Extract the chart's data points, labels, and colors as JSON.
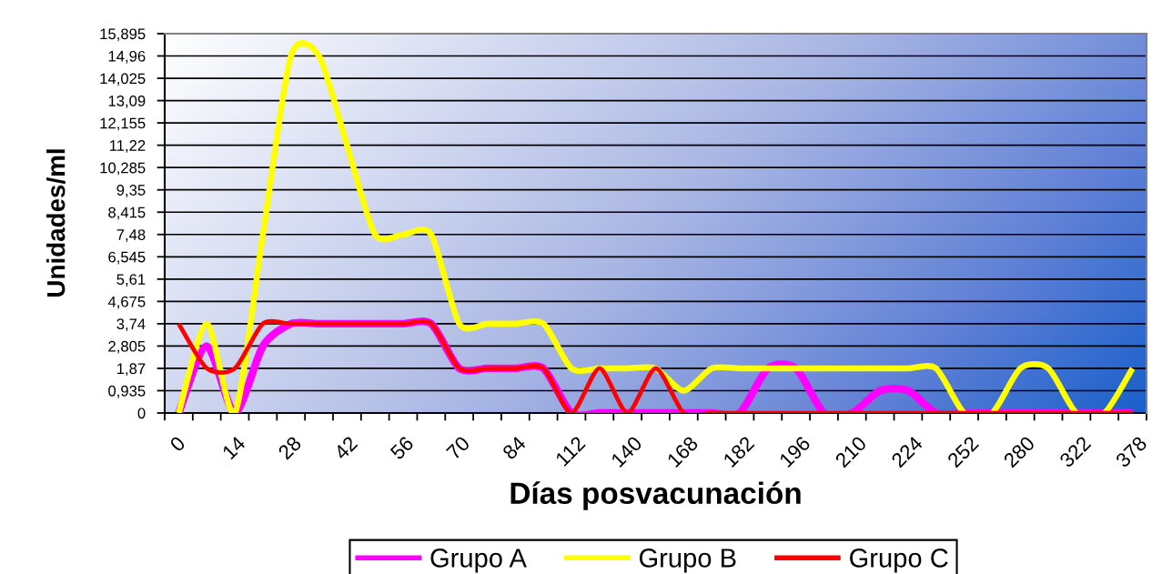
{
  "chart_data": {
    "type": "line",
    "xlabel": "Días posvacunación",
    "ylabel": "Unidades/ml",
    "categories": [
      "0",
      null,
      "14",
      null,
      "28",
      null,
      "42",
      null,
      "56",
      null,
      "70",
      null,
      "84",
      null,
      "112",
      null,
      "140",
      null,
      "168",
      null,
      "182",
      null,
      "196",
      null,
      "210",
      null,
      "224",
      null,
      "252",
      null,
      "280",
      null,
      "322",
      null,
      "378"
    ],
    "series": [
      {
        "name": "Grupo A",
        "color": "#ff00ff",
        "values": [
          0,
          2.805,
          0,
          2.805,
          3.74,
          3.74,
          3.74,
          3.74,
          3.74,
          3.74,
          1.87,
          1.87,
          1.87,
          1.87,
          0,
          0,
          0,
          0,
          0,
          0,
          0,
          1.87,
          1.87,
          0,
          0,
          0.935,
          0.935,
          0,
          0,
          0,
          0,
          0,
          0,
          0,
          0
        ]
      },
      {
        "name": "Grupo B",
        "color": "#ffff00",
        "values": [
          0,
          3.74,
          0,
          7.48,
          14.96,
          14.96,
          11.22,
          7.48,
          7.48,
          7.48,
          3.74,
          3.74,
          3.74,
          3.74,
          1.87,
          1.87,
          1.87,
          1.87,
          0.935,
          1.87,
          1.87,
          1.87,
          1.87,
          1.87,
          1.87,
          1.87,
          1.87,
          1.87,
          0,
          0,
          1.87,
          1.87,
          0,
          0,
          1.87
        ]
      },
      {
        "name": "Grupo C",
        "color": "#ff0000",
        "values": [
          3.74,
          1.87,
          1.87,
          3.74,
          3.74,
          3.74,
          3.74,
          3.74,
          3.74,
          3.74,
          1.87,
          1.87,
          1.87,
          1.87,
          0,
          1.87,
          0,
          1.87,
          0,
          0,
          0,
          0,
          0,
          0,
          0,
          0,
          0,
          0,
          0,
          0,
          0,
          0,
          0,
          0,
          0
        ]
      }
    ],
    "ylim": [
      0,
      15.895
    ],
    "yticks": [
      0,
      {
        "value": 0.935,
        "label": "0,935"
      },
      {
        "value": 1.87,
        "label": "1,87"
      },
      {
        "value": 2.805,
        "label": "2,805"
      },
      {
        "value": 3.74,
        "label": "3,74"
      },
      {
        "value": 4.675,
        "label": "4,675"
      },
      {
        "value": 5.61,
        "label": "5,61"
      },
      {
        "value": 6.545,
        "label": "6,545"
      },
      {
        "value": 7.48,
        "label": "7,48"
      },
      {
        "value": 8.415,
        "label": "8,415"
      },
      {
        "value": 9.35,
        "label": "9,35"
      },
      {
        "value": 10.285,
        "label": "10,285"
      },
      {
        "value": 11.22,
        "label": "11,22"
      },
      {
        "value": 12.155,
        "label": "12,155"
      },
      {
        "value": 13.09,
        "label": "13,09"
      },
      {
        "value": 14.025,
        "label": "14,025"
      },
      {
        "value": 14.96,
        "label": "14,96"
      },
      {
        "value": 15.895,
        "label": "15,895"
      }
    ],
    "grid": "y",
    "legend": "bottom"
  }
}
